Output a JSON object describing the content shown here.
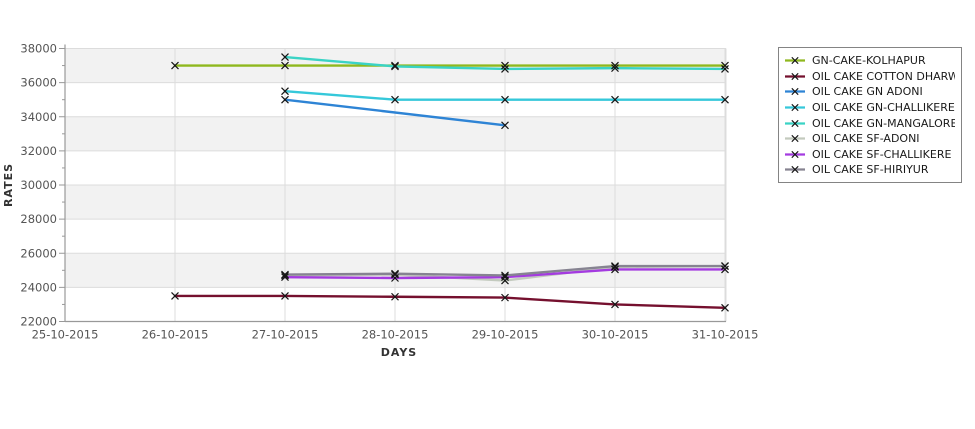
{
  "chart_data": {
    "type": "line",
    "title": "",
    "xlabel": "DAYS",
    "ylabel": "RATES",
    "x_categories": [
      "25-10-2015",
      "26-10-2015",
      "27-10-2015",
      "28-10-2015",
      "29-10-2015",
      "30-10-2015",
      "31-10-2015"
    ],
    "y_ticks": [
      38000,
      36000,
      34000,
      32000,
      30000,
      28000,
      26000,
      24000,
      22000
    ],
    "y_minor_ticks": [
      37000,
      35000,
      33000,
      31000,
      29000,
      27000,
      25000,
      23000
    ],
    "ylim": [
      22000,
      38000
    ],
    "grid": true,
    "banded_background": true,
    "legend_position": "right",
    "marker": "x",
    "series": [
      {
        "name": "GN-CAKE-KOLHAPUR",
        "color": "#8fb81e",
        "points": [
          [
            "26-10-2015",
            37000
          ],
          [
            "27-10-2015",
            37000
          ],
          [
            "28-10-2015",
            37000
          ],
          [
            "29-10-2015",
            37000
          ],
          [
            "30-10-2015",
            37000
          ],
          [
            "31-10-2015",
            37000
          ]
        ]
      },
      {
        "name": "OIL CAKE COTTON DHARWAD",
        "color": "#75102e",
        "points": [
          [
            "26-10-2015",
            23500
          ],
          [
            "27-10-2015",
            23500
          ],
          [
            "28-10-2015",
            23450
          ],
          [
            "29-10-2015",
            23400
          ],
          [
            "30-10-2015",
            23000
          ],
          [
            "31-10-2015",
            22800
          ]
        ]
      },
      {
        "name": "OIL CAKE GN ADONI",
        "color": "#2e84d5",
        "points": [
          [
            "27-10-2015",
            35000
          ],
          [
            "29-10-2015",
            33500
          ]
        ]
      },
      {
        "name": "OIL CAKE GN-CHALLIKERE",
        "color": "#35c8da",
        "points": [
          [
            "27-10-2015",
            35500
          ],
          [
            "28-10-2015",
            35000
          ],
          [
            "29-10-2015",
            35000
          ],
          [
            "30-10-2015",
            35000
          ],
          [
            "31-10-2015",
            35000
          ]
        ]
      },
      {
        "name": "OIL CAKE GN-MANGALORE",
        "color": "#3ad3c5",
        "points": [
          [
            "27-10-2015",
            37500
          ],
          [
            "28-10-2015",
            36950
          ],
          [
            "29-10-2015",
            36800
          ],
          [
            "30-10-2015",
            36850
          ],
          [
            "31-10-2015",
            36800
          ]
        ]
      },
      {
        "name": "OIL CAKE SF-ADONI",
        "color": "#c3cabe",
        "points": [
          [
            "27-10-2015",
            24700
          ],
          [
            "28-10-2015",
            24750
          ],
          [
            "29-10-2015",
            24400
          ],
          [
            "30-10-2015",
            25200
          ],
          [
            "31-10-2015",
            25250
          ]
        ]
      },
      {
        "name": "OIL CAKE SF-CHALLIKERE",
        "color": "#a43be0",
        "points": [
          [
            "27-10-2015",
            24600
          ],
          [
            "28-10-2015",
            24550
          ],
          [
            "29-10-2015",
            24600
          ],
          [
            "30-10-2015",
            25050
          ],
          [
            "31-10-2015",
            25050
          ]
        ]
      },
      {
        "name": "OIL CAKE SF-HIRIYUR",
        "color": "#868391",
        "points": [
          [
            "27-10-2015",
            24750
          ],
          [
            "28-10-2015",
            24800
          ],
          [
            "29-10-2015",
            24700
          ],
          [
            "30-10-2015",
            25250
          ],
          [
            "31-10-2015",
            25250
          ]
        ]
      }
    ],
    "colors": {
      "band": "#f2f2f2",
      "grid": "#dcdcdc",
      "axis": "#999999",
      "tick_label": "#555555",
      "marker": "#161616",
      "legend_border": "#848484"
    }
  }
}
